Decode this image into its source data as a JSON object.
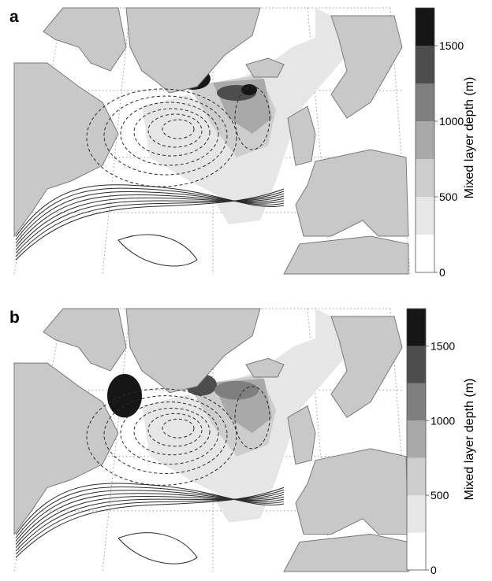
{
  "panels": [
    {
      "label": "a"
    },
    {
      "label": "b"
    }
  ],
  "colorbar": {
    "title": "Mixed layer depth (m)",
    "tick_labels": [
      "0",
      "500",
      "1000",
      "1500"
    ],
    "colors": [
      "#ffffff",
      "#e6e6e6",
      "#cdcdcd",
      "#a9a9a9",
      "#7f7f7f",
      "#4d4d4d",
      "#161616"
    ]
  },
  "colors": {
    "land": "#c8c8c8",
    "coast": "#7a7a7a",
    "contour": "#2b2b2b",
    "graticule": "#9a9a9a"
  },
  "chart_data": [
    {
      "type": "heatmap",
      "panel": "a",
      "colorbar_label": "Mixed layer depth (m)",
      "colorbar_ticks": [
        0,
        500,
        1000,
        1500
      ],
      "colorbar_range": [
        0,
        1750
      ],
      "colorbar_step": 250,
      "contour_lines": "solid = positive, dashed = negative"
    },
    {
      "type": "heatmap",
      "panel": "b",
      "colorbar_label": "Mixed layer depth (m)",
      "colorbar_ticks": [
        0,
        500,
        1000,
        1500
      ],
      "colorbar_range": [
        0,
        1750
      ],
      "colorbar_step": 250,
      "contour_lines": "solid = positive, dashed = negative"
    }
  ]
}
